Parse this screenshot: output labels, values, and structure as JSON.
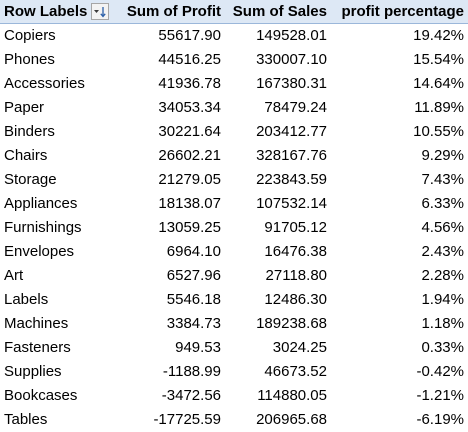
{
  "header": {
    "row_labels": "Row Labels",
    "sum_of_profit": "Sum of Profit",
    "sum_of_sales": "Sum of Sales",
    "profit_percentage": "profit percentage",
    "filter_icon": "sort-descending-filter-icon"
  },
  "colors": {
    "header_background": "#dde8f5",
    "header_border": "#9bb7da"
  },
  "rows": [
    {
      "label": "Copiers",
      "profit": "55617.90",
      "sales": "149528.01",
      "pct": "19.42%"
    },
    {
      "label": "Phones",
      "profit": "44516.25",
      "sales": "330007.10",
      "pct": "15.54%"
    },
    {
      "label": "Accessories",
      "profit": "41936.78",
      "sales": "167380.31",
      "pct": "14.64%"
    },
    {
      "label": "Paper",
      "profit": "34053.34",
      "sales": "78479.24",
      "pct": "11.89%"
    },
    {
      "label": "Binders",
      "profit": "30221.64",
      "sales": "203412.77",
      "pct": "10.55%"
    },
    {
      "label": "Chairs",
      "profit": "26602.21",
      "sales": "328167.76",
      "pct": "9.29%"
    },
    {
      "label": "Storage",
      "profit": "21279.05",
      "sales": "223843.59",
      "pct": "7.43%"
    },
    {
      "label": "Appliances",
      "profit": "18138.07",
      "sales": "107532.14",
      "pct": "6.33%"
    },
    {
      "label": "Furnishings",
      "profit": "13059.25",
      "sales": "91705.12",
      "pct": "4.56%"
    },
    {
      "label": "Envelopes",
      "profit": "6964.10",
      "sales": "16476.38",
      "pct": "2.43%"
    },
    {
      "label": "Art",
      "profit": "6527.96",
      "sales": "27118.80",
      "pct": "2.28%"
    },
    {
      "label": "Labels",
      "profit": "5546.18",
      "sales": "12486.30",
      "pct": "1.94%"
    },
    {
      "label": "Machines",
      "profit": "3384.73",
      "sales": "189238.68",
      "pct": "1.18%"
    },
    {
      "label": "Fasteners",
      "profit": "949.53",
      "sales": "3024.25",
      "pct": "0.33%"
    },
    {
      "label": "Supplies",
      "profit": "-1188.99",
      "sales": "46673.52",
      "pct": "-0.42%"
    },
    {
      "label": "Bookcases",
      "profit": "-3472.56",
      "sales": "114880.05",
      "pct": "-1.21%"
    },
    {
      "label": "Tables",
      "profit": "-17725.59",
      "sales": "206965.68",
      "pct": "-6.19%"
    }
  ]
}
